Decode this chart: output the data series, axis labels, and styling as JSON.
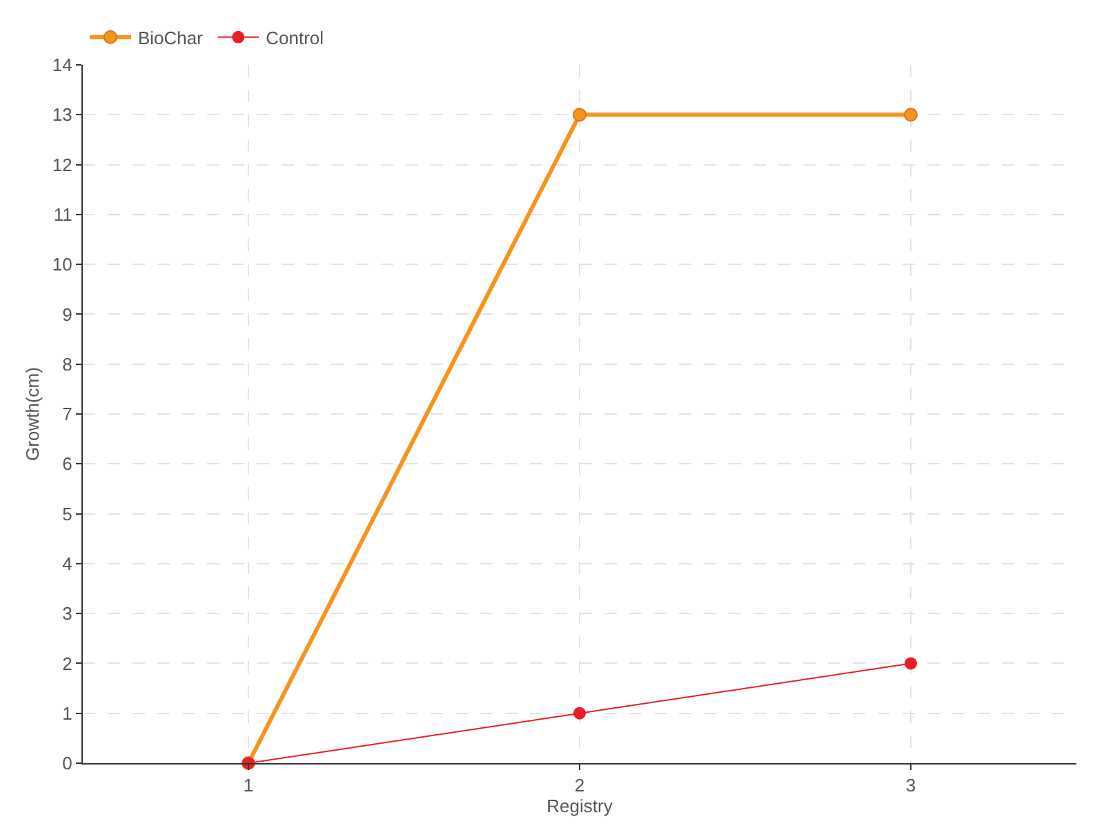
{
  "chart_data": {
    "type": "line",
    "xlabel": "Registry",
    "ylabel": "Growth(cm)",
    "x": [
      1,
      2,
      3
    ],
    "series": [
      {
        "name": "BioChar",
        "color": "#f7941d",
        "values": [
          0,
          13,
          13
        ]
      },
      {
        "name": "Control",
        "color": "#ed1c24",
        "values": [
          0,
          1,
          2
        ]
      }
    ],
    "xlim": [
      0.5,
      3.5
    ],
    "xticks": [
      1,
      2,
      3
    ],
    "ylim": [
      0,
      14
    ],
    "yticks": [
      0,
      1,
      2,
      3,
      4,
      5,
      6,
      7,
      8,
      9,
      10,
      11,
      12,
      13,
      14
    ],
    "grid": true,
    "legend": "top left",
    "marker": "circle",
    "line_style": "solid"
  }
}
